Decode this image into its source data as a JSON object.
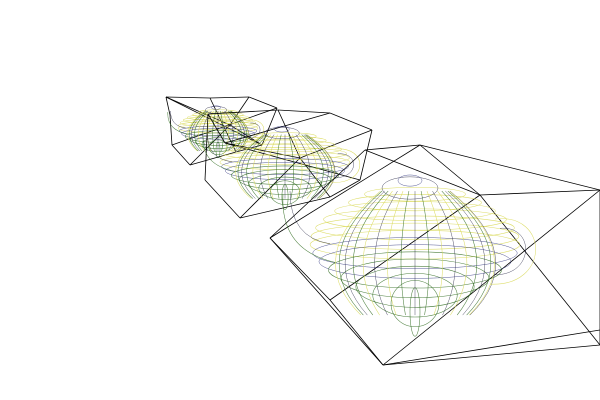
{
  "viewport": {
    "background": "#ffffff"
  },
  "colors": {
    "bounding_box": "#000000",
    "mesh_lower": "#2f6b1f",
    "mesh_upper": "#d9d95a",
    "mesh_shadow": "#2a2f7a"
  },
  "objects": [
    {
      "name": "teapot-far",
      "shape": "teapot-wireframe",
      "bounding_box": "octahedron-wireframe"
    },
    {
      "name": "teapot-middle",
      "shape": "teapot-wireframe",
      "bounding_box": "octahedron-wireframe"
    },
    {
      "name": "teapot-near",
      "shape": "teapot-wireframe",
      "bounding_box": "octahedron-wireframe"
    }
  ]
}
